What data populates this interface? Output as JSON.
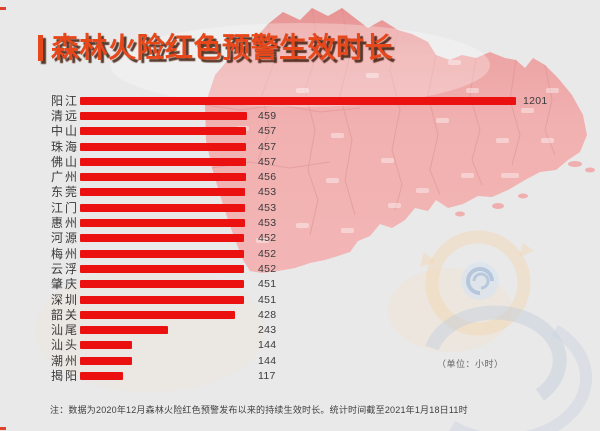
{
  "page": {
    "background_color": "#e9e9e9"
  },
  "header": {
    "title": "森林火险红色预警生效时长",
    "title_color": "#e7481b"
  },
  "chart_data": {
    "type": "bar",
    "orientation": "horizontal",
    "title": "森林火险红色预警生效时长",
    "categories": [
      "阳江",
      "清远",
      "中山",
      "珠海",
      "佛山",
      "广州",
      "东莞",
      "江门",
      "惠州",
      "河源",
      "梅州",
      "云浮",
      "肇庆",
      "深圳",
      "韶关",
      "汕尾",
      "汕头",
      "潮州",
      "揭阳"
    ],
    "values": [
      1201,
      459,
      457,
      457,
      457,
      456,
      453,
      453,
      453,
      452,
      452,
      452,
      451,
      451,
      428,
      243,
      144,
      144,
      117
    ],
    "value_max": 1201,
    "xlim": [
      0,
      1240
    ],
    "unit_label": "（单位：小时）",
    "bar_color": "#ec1111",
    "label_color": "#3a3a3a",
    "grid": false,
    "legend": "none"
  },
  "footer": {
    "note": "注：数据为2020年12月森林火险红色预警发布以来的持续生效时长。统计时间截至2021年1月18日11时"
  },
  "background": {
    "map_icon": "guangdong-province-map",
    "map_color": "#f0abab",
    "watermark_icon": "typhoon-swirl-logo",
    "watermark_color": "#c5d0de"
  }
}
